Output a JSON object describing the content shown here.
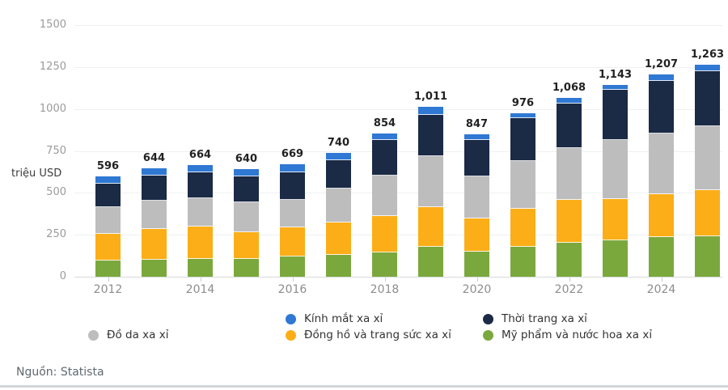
{
  "chart_data": {
    "type": "bar",
    "stacked": true,
    "title": "",
    "xlabel": "",
    "ylabel": "triệu USD",
    "ylim": [
      0,
      1500
    ],
    "ytick_values": [
      0,
      250,
      500,
      750,
      1000,
      1250,
      1500
    ],
    "ytick_labels": [
      "0",
      "250",
      "500",
      "750",
      "1000",
      "1250",
      "1500"
    ],
    "grid": true,
    "legend_position": "bottom",
    "categories": [
      "2012",
      "2013",
      "2014",
      "2015",
      "2016",
      "2017",
      "2018",
      "2019",
      "2020",
      "2021",
      "2022",
      "2023",
      "2024",
      "2025"
    ],
    "totals": [
      596,
      644,
      664,
      640,
      669,
      740,
      854,
      1011,
      847,
      976,
      1068,
      1143,
      1207,
      1263
    ],
    "total_labels": [
      "596",
      "644",
      "664",
      "640",
      "669",
      "740",
      "854",
      "1,011",
      "847",
      "976",
      "1,068",
      "1,143",
      "1,207",
      "1,263"
    ],
    "series": [
      {
        "name": "Mỹ phẩm và nước hoa xa xỉ",
        "color": "#7ba83d",
        "values": [
          95,
          100,
          105,
          108,
          120,
          132,
          145,
          178,
          150,
          179,
          204,
          218,
          236,
          242
        ]
      },
      {
        "name": "Đồng hồ và trang sức xa xỉ",
        "color": "#fbae17",
        "values": [
          160,
          185,
          192,
          158,
          172,
          192,
          218,
          237,
          198,
          224,
          252,
          243,
          257,
          276
        ]
      },
      {
        "name": "Đồ da xa xỉ",
        "color": "#bdbdbd",
        "values": [
          162,
          170,
          170,
          176,
          165,
          200,
          240,
          302,
          252,
          288,
          312,
          356,
          362,
          378
        ]
      },
      {
        "name": "Thời trang xa xỉ",
        "color": "#1b2a45",
        "values": [
          140,
          147,
          156,
          157,
          167,
          170,
          210,
          250,
          213,
          253,
          264,
          295,
          313,
          328
        ]
      },
      {
        "name": "Kính mắt xa xỉ",
        "color": "#2f78d3",
        "values": [
          39,
          42,
          41,
          41,
          45,
          46,
          41,
          44,
          34,
          32,
          36,
          31,
          39,
          39
        ]
      }
    ],
    "legend": [
      {
        "label": "Kính mắt xa xỉ",
        "color": "#2f78d3",
        "col": 1,
        "row": 0
      },
      {
        "label": "Thời trang xa xỉ",
        "color": "#1b2a45",
        "col": 2,
        "row": 0
      },
      {
        "label": "Đồ da xa xỉ",
        "color": "#bdbdbd",
        "col": 0,
        "row": 1
      },
      {
        "label": "Đồng hồ và trang sức xa xỉ",
        "color": "#fbae17",
        "col": 1,
        "row": 1
      },
      {
        "label": "Mỹ phẩm và nước hoa xa xỉ",
        "color": "#7ba83d",
        "col": 2,
        "row": 1
      }
    ]
  },
  "source": {
    "label": "Nguồn: Statista"
  }
}
